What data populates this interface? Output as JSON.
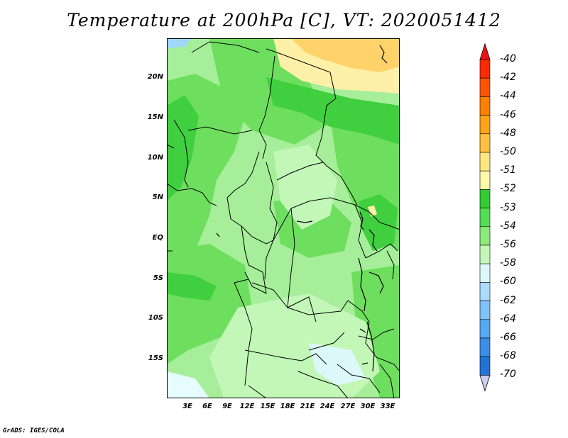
{
  "title": "Temperature at 200hPa [C], VT: 2020051412",
  "credit": "GrADS: IGES/COLA",
  "lat_labels": [
    "20N",
    "15N",
    "10N",
    "5N",
    "EQ",
    "5S",
    "10S",
    "15S"
  ],
  "lon_labels": [
    "3E",
    "6E",
    "9E",
    "12E",
    "15E",
    "18E",
    "21E",
    "24E",
    "27E",
    "30E",
    "33E"
  ],
  "colorbar": {
    "levels": [
      "-40",
      "-42",
      "-44",
      "-46",
      "-48",
      "-50",
      "-51",
      "-52",
      "-53",
      "-54",
      "-56",
      "-58",
      "-60",
      "-62",
      "-64",
      "-66",
      "-68",
      "-70"
    ],
    "colors": [
      "#ff2a00",
      "#ff5500",
      "#ff8000",
      "#ffa31a",
      "#ffc040",
      "#ffe680",
      "#fffaaa",
      "#33cc33",
      "#55dd55",
      "#8aec7a",
      "#c2f7b8",
      "#ddf8fb",
      "#aadcff",
      "#7fc1fb",
      "#58a8f3",
      "#3b8ee8",
      "#2372d8",
      "#1254c0",
      "#0a2e99",
      "#0a0f6e"
    ],
    "top_arrow_color": "#ee1111",
    "bottom_arrow_color": "#ccccee"
  },
  "colors": {
    "map_base": "#a6ee9a",
    "mid_green": "#6ede5e",
    "dark_green": "#3fcf3f",
    "yellow": "#fff0a8",
    "orange": "#ffd36a",
    "pale_blue": "#e6fcff",
    "light_blue": "#9fd7ff",
    "border": "#000000"
  }
}
